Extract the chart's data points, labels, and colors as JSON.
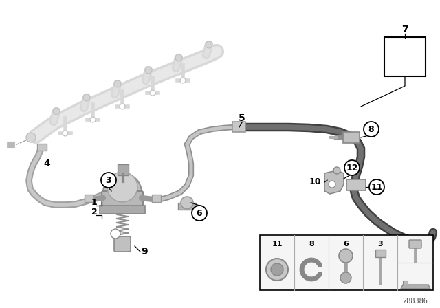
{
  "bg_color": "#ffffff",
  "fig_width": 6.4,
  "fig_height": 4.48,
  "dpi": 100,
  "diagram_number": "288386",
  "ghost_fill": "#d8d8d8",
  "ghost_edge": "#c0c0c0",
  "ghost_dark": "#b8b8b8",
  "part_fill": "#c8c8c8",
  "part_edge": "#999999",
  "part_dark": "#a8a8a8",
  "dark_tube": "#555555",
  "dark_tube2": "#888888",
  "light_tube": "#b0b0b0",
  "light_tube2": "#d0d0d0",
  "callout_fill": "#ffffff",
  "callout_edge": "#000000",
  "label_color": "#000000",
  "box7_fill": "#ffffff",
  "box7_edge": "#000000"
}
